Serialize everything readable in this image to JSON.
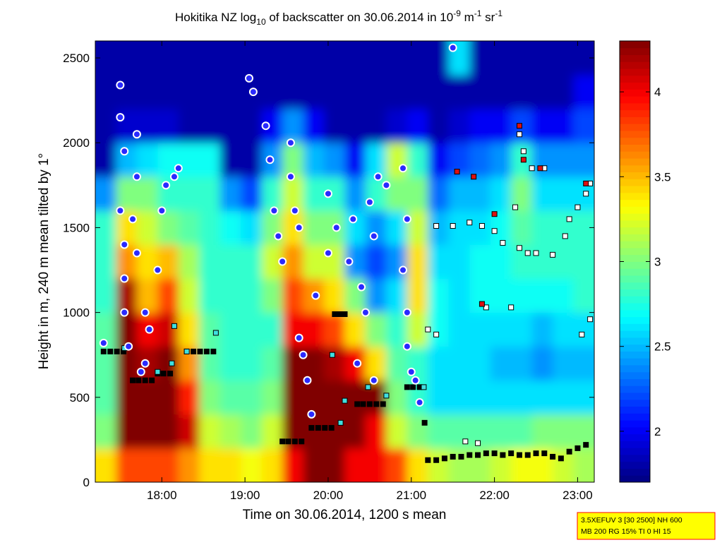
{
  "chart_data": {
    "type": "heatmap",
    "title": [
      "Hokitika NZ log",
      "10",
      " of backscatter on 30.06.2014 in 10",
      "-9",
      " m",
      "-1",
      " sr",
      "-1"
    ],
    "x_label": "Time on 30.06.2014, 1200 s mean",
    "y_label": "Height in m, 240 m mean tilted by 1°",
    "annotation": [
      "3.5XEFUV 3 [30 2500] NH 600",
      "MB 200 RG 15% TI 0 HI 15"
    ],
    "xlim": [
      17.2,
      23.2
    ],
    "xticks": [
      {
        "value": 18,
        "label": "18:00"
      },
      {
        "value": 19,
        "label": "19:00"
      },
      {
        "value": 20,
        "label": "20:00"
      },
      {
        "value": 21,
        "label": "21:00"
      },
      {
        "value": 22,
        "label": "22:00"
      },
      {
        "value": 23,
        "label": "23:00"
      }
    ],
    "ylim": [
      0,
      2600
    ],
    "yticks": [
      0,
      500,
      1000,
      1500,
      2000,
      2500
    ],
    "colormap": "jet",
    "clim": [
      1.7,
      4.3
    ],
    "cticks": [
      2,
      2.5,
      3,
      3.5,
      4
    ],
    "x_bins": [
      17.2,
      17.45,
      17.7,
      17.95,
      18.2,
      18.45,
      18.7,
      18.95,
      19.2,
      19.45,
      19.7,
      19.95,
      20.2,
      20.45,
      20.7,
      20.95,
      21.2,
      21.45,
      21.7,
      21.95,
      22.2,
      22.45,
      22.7,
      22.95,
      23.2
    ],
    "y_bins": [
      0,
      200,
      400,
      600,
      800,
      1000,
      1200,
      1400,
      1600,
      1800,
      2000,
      2200,
      2400,
      2600
    ],
    "z": [
      [
        3.4,
        3.0,
        2.9,
        2.9,
        2.9,
        2.8,
        2.8,
        2.8,
        2.4,
        1.8,
        1.8,
        1.8,
        1.8
      ],
      [
        3.8,
        4.3,
        4.3,
        4.3,
        4.3,
        4.2,
        3.6,
        3.4,
        3.0,
        2.5,
        1.9,
        1.8,
        1.8
      ],
      [
        3.8,
        4.3,
        4.3,
        4.2,
        4.0,
        3.5,
        3.4,
        3.2,
        3.0,
        2.6,
        1.9,
        1.8,
        1.8
      ],
      [
        3.8,
        4.3,
        4.3,
        4.3,
        4.1,
        3.8,
        3.5,
        3.0,
        2.8,
        2.7,
        1.9,
        1.8,
        1.8
      ],
      [
        3.6,
        4.1,
        3.9,
        3.6,
        3.4,
        3.2,
        3.1,
        2.9,
        2.8,
        2.7,
        1.8,
        1.8,
        1.8
      ],
      [
        3.4,
        3.2,
        3.0,
        2.9,
        2.9,
        2.8,
        2.8,
        2.8,
        2.8,
        2.7,
        1.8,
        1.8,
        1.8
      ],
      [
        3.4,
        3.1,
        2.9,
        2.8,
        2.8,
        2.8,
        2.8,
        2.7,
        2.4,
        1.8,
        1.8,
        1.8,
        1.8
      ],
      [
        3.3,
        3.0,
        2.9,
        2.8,
        2.8,
        2.8,
        2.8,
        2.6,
        2.2,
        1.8,
        1.8,
        1.8,
        1.8
      ],
      [
        3.4,
        3.2,
        3.0,
        2.9,
        2.8,
        3.0,
        3.2,
        3.0,
        2.8,
        2.4,
        2.0,
        1.8,
        1.8
      ],
      [
        4.0,
        4.3,
        4.3,
        4.3,
        4.0,
        3.8,
        3.6,
        3.4,
        3.2,
        3.0,
        2.4,
        1.8,
        1.8
      ],
      [
        4.3,
        4.3,
        4.3,
        4.3,
        4.0,
        3.6,
        3.2,
        3.0,
        2.8,
        2.5,
        2.0,
        1.8,
        1.8
      ],
      [
        4.3,
        4.3,
        4.3,
        4.2,
        3.8,
        3.4,
        3.2,
        3.0,
        2.8,
        2.4,
        1.8,
        1.8,
        1.8
      ],
      [
        4.0,
        4.3,
        4.3,
        4.0,
        3.4,
        3.0,
        2.4,
        2.6,
        2.4,
        2.0,
        1.8,
        1.8,
        1.8
      ],
      [
        4.0,
        4.0,
        4.3,
        3.4,
        3.0,
        2.4,
        2.2,
        2.4,
        2.8,
        2.6,
        1.8,
        1.8,
        1.8
      ],
      [
        3.8,
        3.2,
        3.0,
        2.9,
        2.8,
        2.6,
        2.4,
        2.6,
        3.0,
        3.2,
        1.9,
        1.8,
        1.8
      ],
      [
        3.4,
        3.0,
        2.8,
        2.8,
        3.2,
        3.4,
        3.4,
        3.2,
        3.0,
        2.8,
        2.0,
        1.8,
        1.8
      ],
      [
        3.2,
        2.9,
        2.6,
        2.6,
        2.7,
        2.7,
        2.6,
        2.5,
        2.3,
        2.0,
        1.8,
        1.8,
        1.8
      ],
      [
        3.1,
        2.9,
        2.6,
        2.6,
        2.6,
        2.6,
        2.6,
        2.6,
        2.5,
        2.2,
        1.9,
        1.8,
        2.6
      ],
      [
        3.1,
        2.9,
        2.6,
        2.6,
        2.6,
        2.7,
        2.7,
        2.6,
        2.5,
        2.3,
        2.0,
        1.8,
        1.8
      ],
      [
        3.2,
        2.9,
        2.6,
        2.5,
        2.6,
        2.7,
        2.7,
        2.7,
        2.6,
        2.4,
        2.0,
        1.8,
        1.8
      ],
      [
        3.3,
        2.9,
        2.6,
        2.5,
        2.6,
        2.7,
        2.8,
        2.9,
        3.0,
        2.8,
        2.2,
        1.8,
        1.8
      ],
      [
        3.3,
        3.0,
        2.6,
        2.4,
        2.5,
        2.7,
        2.8,
        2.8,
        2.6,
        2.4,
        2.0,
        1.8,
        1.8
      ],
      [
        3.2,
        3.0,
        2.6,
        2.5,
        2.6,
        2.7,
        2.8,
        2.8,
        2.6,
        2.4,
        2.0,
        1.8,
        1.8
      ],
      [
        3.1,
        3.0,
        2.6,
        2.5,
        2.6,
        2.8,
        2.8,
        2.8,
        2.6,
        2.4,
        2.2,
        2.0,
        1.8
      ]
    ],
    "series": [
      {
        "marker": "square",
        "color": "#000000",
        "edge": "#000000",
        "x": [
          17.3,
          17.38,
          17.46,
          17.54,
          17.65,
          17.72,
          17.8,
          17.88,
          17.95,
          18.02,
          18.1,
          18.3,
          18.38,
          18.46,
          18.54,
          18.62,
          19.45,
          19.52,
          19.6,
          19.68,
          19.8,
          19.88,
          19.96,
          20.04,
          20.08,
          20.14,
          20.2,
          20.35,
          20.42,
          20.5,
          20.58,
          20.66,
          20.95,
          21.02,
          21.1,
          21.16,
          21.2,
          21.3,
          21.4,
          21.5,
          21.6,
          21.7,
          21.8,
          21.9,
          22.0,
          22.1,
          22.2,
          22.3,
          22.4,
          22.5,
          22.6,
          22.7,
          22.8,
          22.9,
          23.0,
          23.1
        ],
        "y": [
          770,
          770,
          770,
          770,
          600,
          600,
          600,
          600,
          640,
          640,
          640,
          770,
          770,
          770,
          770,
          770,
          240,
          240,
          240,
          240,
          320,
          320,
          320,
          320,
          990,
          990,
          990,
          460,
          460,
          460,
          460,
          460,
          560,
          560,
          560,
          350,
          130,
          130,
          140,
          150,
          150,
          160,
          160,
          170,
          170,
          160,
          170,
          160,
          160,
          170,
          170,
          150,
          140,
          180,
          200,
          220
        ]
      },
      {
        "marker": "square",
        "color": "#40e0e0",
        "edge": "#000000",
        "x": [
          17.55,
          18.15,
          18.3,
          18.65,
          17.95,
          20.15,
          20.2,
          20.05,
          20.7,
          21.15,
          18.12,
          20.48
        ],
        "y": [
          790,
          920,
          770,
          880,
          650,
          350,
          480,
          750,
          510,
          560,
          700,
          560
        ]
      },
      {
        "marker": "square",
        "color": "#ffffff",
        "edge": "#000000",
        "x": [
          21.3,
          21.5,
          21.7,
          21.85,
          22.0,
          22.1,
          22.3,
          22.4,
          22.5,
          22.7,
          22.9,
          23.0,
          23.1,
          23.15,
          22.3,
          22.35,
          22.45,
          22.6,
          21.9,
          21.2,
          21.3,
          22.2,
          23.05,
          23.15,
          21.65,
          21.8,
          22.25,
          22.85
        ],
        "y": [
          1510,
          1510,
          1530,
          1510,
          1480,
          1410,
          1380,
          1350,
          1350,
          1340,
          1550,
          1620,
          1700,
          1760,
          2050,
          1950,
          1850,
          1850,
          1030,
          900,
          870,
          1030,
          870,
          960,
          240,
          230,
          1620,
          1450
        ]
      },
      {
        "marker": "square",
        "color": "#dd1111",
        "edge": "#000000",
        "x": [
          21.55,
          21.75,
          21.85,
          22.3,
          23.1,
          22.0,
          22.35,
          22.55
        ],
        "y": [
          1830,
          1800,
          1050,
          2100,
          1760,
          1580,
          1900,
          1850
        ]
      },
      {
        "marker": "circle",
        "color": "#2a2aff",
        "edge": "#ffffff",
        "x": [
          17.5,
          17.5,
          17.55,
          17.5,
          17.55,
          17.55,
          17.55,
          17.6,
          17.7,
          17.7,
          17.65,
          17.7,
          17.8,
          17.8,
          17.75,
          17.85,
          17.95,
          18.0,
          18.05,
          18.15,
          18.2,
          17.3,
          19.05,
          19.1,
          19.25,
          19.3,
          19.35,
          19.4,
          19.45,
          19.55,
          19.55,
          19.6,
          19.65,
          19.65,
          19.7,
          19.75,
          19.8,
          19.85,
          20.0,
          20.0,
          20.1,
          20.25,
          20.3,
          20.4,
          20.45,
          20.35,
          20.5,
          20.55,
          20.6,
          20.7,
          20.55,
          20.9,
          20.95,
          20.9,
          20.95,
          20.95,
          21.0,
          21.05,
          21.1,
          21.5
        ],
        "y": [
          2340,
          2150,
          1950,
          1600,
          1400,
          1200,
          1000,
          800,
          2050,
          1800,
          1550,
          1350,
          1000,
          700,
          650,
          900,
          1250,
          1600,
          1750,
          1800,
          1850,
          820,
          2380,
          2300,
          2100,
          1900,
          1600,
          1450,
          1300,
          2000,
          1800,
          1600,
          1500,
          850,
          750,
          600,
          400,
          1100,
          1350,
          1700,
          1500,
          1300,
          1550,
          1150,
          1000,
          700,
          1650,
          1450,
          1800,
          1750,
          600,
          1850,
          1550,
          1250,
          1000,
          800,
          650,
          600,
          470,
          2560
        ]
      }
    ]
  }
}
